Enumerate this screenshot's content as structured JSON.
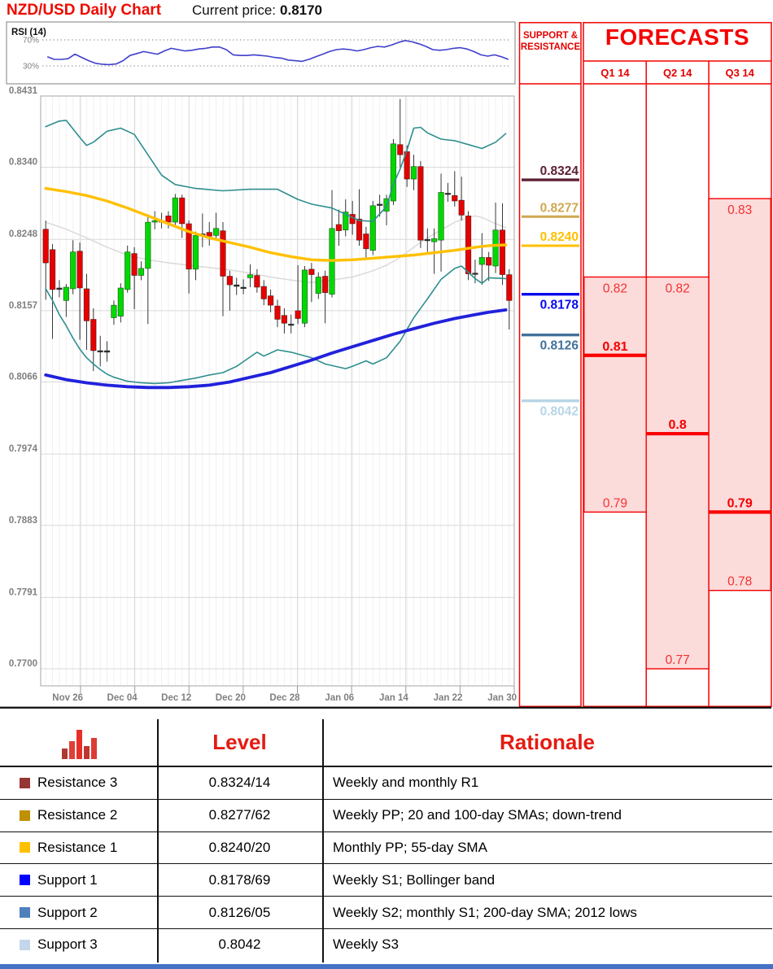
{
  "header": {
    "title": "NZD/USD Daily Chart",
    "price_label": "Current price:",
    "price_value": "0.8170"
  },
  "support_resistance": {
    "header": "SUPPORT & RESISTANCE",
    "levels": [
      {
        "label": "0.8324",
        "price": 0.8324,
        "color": "#5e2234",
        "weight": 3.4,
        "label_side": "above"
      },
      {
        "label": "0.8277",
        "price": 0.8277,
        "color": "#d0a850",
        "weight": 3.0,
        "label_side": "above"
      },
      {
        "label": "0.8240",
        "price": 0.824,
        "color": "#ffc000",
        "weight": 3.0,
        "label_side": "above"
      },
      {
        "label": "0.8178",
        "price": 0.8178,
        "color": "#0b0bee",
        "weight": 3.4,
        "label_side": "below"
      },
      {
        "label": "0.8126",
        "price": 0.8126,
        "color": "#41719c",
        "weight": 3.4,
        "label_side": "below"
      },
      {
        "label": "0.8042",
        "price": 0.8042,
        "color": "#b9d5e7",
        "weight": 3.4,
        "label_side": "below"
      }
    ]
  },
  "forecasts": {
    "title": "FORECASTS",
    "quarters": [
      {
        "label": "Q1 14",
        "range_top": 0.82,
        "range_bottom": 0.79,
        "forecast": 0.81,
        "top_label": "0.82",
        "bottom_label": "0.79",
        "forecast_label": "0.81"
      },
      {
        "label": "Q2 14",
        "range_top": 0.82,
        "range_bottom": 0.77,
        "forecast": 0.8,
        "top_label": "0.82",
        "bottom_label": "0.77",
        "forecast_label": "0.8"
      },
      {
        "label": "Q3 14",
        "range_top": 0.83,
        "range_bottom": 0.78,
        "forecast": 0.79,
        "top_label": "0.83",
        "bottom_label": "0.78",
        "forecast_label": "0.79"
      }
    ]
  },
  "table": {
    "headers": {
      "level": "Level",
      "rationale": "Rationale"
    },
    "rows": [
      {
        "swatch": "#963634",
        "label": "Resistance 3",
        "level": "0.8324/14",
        "rationale": "Weekly and monthly R1"
      },
      {
        "swatch": "#bf9000",
        "label": "Resistance 2",
        "level": "0.8277/62",
        "rationale": "Weekly PP; 20 and 100-day SMAs; down-trend"
      },
      {
        "swatch": "#ffc000",
        "label": "Resistance 1",
        "level": "0.8240/20",
        "rationale": "Monthly PP; 55-day SMA"
      },
      {
        "swatch": "#0000ff",
        "label": "Support 1",
        "level": "0.8178/69",
        "rationale": "Weekly S1; Bollinger band"
      },
      {
        "swatch": "#4f81bd",
        "label": "Support 2",
        "level": "0.8126/05",
        "rationale": "Weekly S2; monthly S1; 200-day SMA; 2012 lows"
      },
      {
        "swatch": "#c3d6ec",
        "label": "Support 3",
        "level": "0.8042",
        "rationale": "Weekly S3"
      }
    ]
  },
  "colors": {
    "candle_up": "#00d800",
    "candle_down": "#e60000",
    "doji": "#333333",
    "bollinger": "#2f8e8e",
    "sma20": "#dadada",
    "sma55": "#ffc000",
    "sma200": "#2121dc",
    "grid": "#d9d9d9",
    "axis_text": "#7f7f7f",
    "rsi_line": "#4040cc",
    "forecast_fill": "#fcdbdb",
    "forecast_border": "#f40000",
    "accent_red": "#e30000"
  },
  "chart_data": {
    "type": "candlestick",
    "title": "NZD/USD Daily Chart",
    "ylim": [
      0.77,
      0.8431
    ],
    "y_tick_labels": [
      "0.8431",
      "0.8340",
      "0.8248",
      "0.8157",
      "0.8066",
      "0.7974",
      "0.7883",
      "0.7791",
      "0.7700"
    ],
    "x_tick_labels": [
      "Nov 26",
      "Dec 04",
      "Dec 12",
      "Dec 20",
      "Dec 28",
      "Jan 06",
      "Jan 14",
      "Jan 22",
      "Jan 30"
    ],
    "rsi": {
      "label": "RSI (14)",
      "overbought": "70%",
      "oversold": "30%",
      "values": [
        44,
        40,
        40,
        41,
        48,
        43,
        38,
        34,
        32.5,
        32,
        33,
        38,
        46,
        49,
        52,
        50,
        48,
        53,
        57,
        55,
        53,
        54,
        56,
        57,
        59,
        59,
        55,
        47,
        46,
        46,
        47,
        46,
        45,
        43,
        42,
        39,
        38,
        37,
        40,
        44,
        48,
        52,
        55,
        56,
        55,
        53,
        55,
        58,
        60,
        59,
        62,
        66,
        69,
        67,
        64,
        60,
        55,
        54,
        55,
        57,
        58,
        56,
        52,
        47,
        45,
        47,
        44,
        40
      ]
    },
    "candles_ohlc": [
      [
        0.8261,
        0.8272,
        0.8171,
        0.8218
      ],
      [
        0.8235,
        0.8242,
        0.8121,
        0.8184
      ],
      [
        0.8186,
        0.8196,
        0.8174,
        0.8184
      ],
      [
        0.817,
        0.8191,
        0.8149,
        0.8187
      ],
      [
        0.8185,
        0.8247,
        0.8178,
        0.8232
      ],
      [
        0.8233,
        0.8244,
        0.812,
        0.8186
      ],
      [
        0.8185,
        0.8204,
        0.8107,
        0.8144
      ],
      [
        0.8146,
        0.816,
        0.808,
        0.8106
      ],
      [
        0.8106,
        0.8125,
        0.8086,
        0.8105
      ],
      [
        0.8104,
        0.8118,
        0.8092,
        0.8106
      ],
      [
        0.8148,
        0.817,
        0.8139,
        0.8164
      ],
      [
        0.815,
        0.8192,
        0.8142,
        0.8186
      ],
      [
        0.8184,
        0.824,
        0.818,
        0.8232
      ],
      [
        0.823,
        0.8238,
        0.8159,
        0.8202
      ],
      [
        0.8202,
        0.822,
        0.8196,
        0.8211
      ],
      [
        0.8211,
        0.828,
        0.814,
        0.827
      ],
      [
        0.827,
        0.8284,
        0.8261,
        0.8272
      ],
      [
        0.8272,
        0.8282,
        0.8262,
        0.827
      ],
      [
        0.8278,
        0.8284,
        0.8262,
        0.827
      ],
      [
        0.827,
        0.8306,
        0.8264,
        0.8301
      ],
      [
        0.8301,
        0.8305,
        0.825,
        0.8268
      ],
      [
        0.8268,
        0.8272,
        0.8179,
        0.821
      ],
      [
        0.821,
        0.8258,
        0.8196,
        0.8253
      ],
      [
        0.8255,
        0.8281,
        0.8238,
        0.8254
      ],
      [
        0.8257,
        0.827,
        0.824,
        0.8252
      ],
      [
        0.8253,
        0.8282,
        0.8247,
        0.8262
      ],
      [
        0.8259,
        0.827,
        0.815,
        0.8201
      ],
      [
        0.8201,
        0.8208,
        0.8157,
        0.819
      ],
      [
        0.819,
        0.8199,
        0.8177,
        0.8188
      ],
      [
        0.8187,
        0.8197,
        0.8178,
        0.8187
      ],
      [
        0.8199,
        0.8216,
        0.8187,
        0.8203
      ],
      [
        0.8202,
        0.821,
        0.818,
        0.8187
      ],
      [
        0.8188,
        0.8196,
        0.8164,
        0.8172
      ],
      [
        0.8176,
        0.8184,
        0.8155,
        0.8164
      ],
      [
        0.8163,
        0.8171,
        0.8136,
        0.8146
      ],
      [
        0.8151,
        0.816,
        0.8128,
        0.8141
      ],
      [
        0.814,
        0.8152,
        0.8128,
        0.8139
      ],
      [
        0.8157,
        0.8215,
        0.814,
        0.8147
      ],
      [
        0.8141,
        0.8214,
        0.8136,
        0.8209
      ],
      [
        0.821,
        0.8218,
        0.8168,
        0.8203
      ],
      [
        0.8179,
        0.8206,
        0.8172,
        0.82
      ],
      [
        0.8201,
        0.8208,
        0.8141,
        0.818
      ],
      [
        0.8178,
        0.8311,
        0.8174,
        0.8262
      ],
      [
        0.8267,
        0.8286,
        0.824,
        0.8259
      ],
      [
        0.826,
        0.8299,
        0.8252,
        0.8283
      ],
      [
        0.828,
        0.8297,
        0.8254,
        0.8268
      ],
      [
        0.8274,
        0.8312,
        0.824,
        0.8247
      ],
      [
        0.8255,
        0.8264,
        0.8222,
        0.8236
      ],
      [
        0.8234,
        0.8297,
        0.8228,
        0.8291
      ],
      [
        0.8292,
        0.8305,
        0.8277,
        0.8293
      ],
      [
        0.8284,
        0.8305,
        0.8266,
        0.83
      ],
      [
        0.8297,
        0.8376,
        0.8292,
        0.837
      ],
      [
        0.8369,
        0.8427,
        0.834,
        0.8356
      ],
      [
        0.836,
        0.8368,
        0.8315,
        0.8325
      ],
      [
        0.8325,
        0.8356,
        0.8311,
        0.8341
      ],
      [
        0.8341,
        0.8348,
        0.8237,
        0.8247
      ],
      [
        0.8247,
        0.8262,
        0.8232,
        0.8248
      ],
      [
        0.8245,
        0.8262,
        0.8204,
        0.8249
      ],
      [
        0.8247,
        0.8332,
        0.8207,
        0.8308
      ],
      [
        0.8306,
        0.832,
        0.8296,
        0.8307
      ],
      [
        0.8304,
        0.8335,
        0.829,
        0.8297
      ],
      [
        0.8298,
        0.8328,
        0.8272,
        0.8279
      ],
      [
        0.8278,
        0.8284,
        0.8196,
        0.8204
      ],
      [
        0.8204,
        0.8222,
        0.8192,
        0.8205
      ],
      [
        0.8216,
        0.8256,
        0.819,
        0.8225
      ],
      [
        0.8225,
        0.8232,
        0.8195,
        0.8215
      ],
      [
        0.8214,
        0.8295,
        0.8205,
        0.826
      ],
      [
        0.826,
        0.8294,
        0.819,
        0.8203
      ],
      [
        0.8203,
        0.821,
        0.8133,
        0.817
      ]
    ],
    "overlays": {
      "bollinger_upper": [
        [
          0,
          0.8392
        ],
        [
          2,
          0.8399
        ],
        [
          3,
          0.84
        ],
        [
          5,
          0.8378
        ],
        [
          6,
          0.8368
        ],
        [
          7,
          0.8372
        ],
        [
          9,
          0.8386
        ],
        [
          11,
          0.839
        ],
        [
          13,
          0.8382
        ],
        [
          15,
          0.8356
        ],
        [
          17,
          0.833
        ],
        [
          19,
          0.8318
        ],
        [
          22,
          0.8313
        ],
        [
          26,
          0.831
        ],
        [
          30,
          0.8312
        ],
        [
          34,
          0.8312
        ],
        [
          37,
          0.8299
        ],
        [
          39,
          0.8293
        ],
        [
          42,
          0.8288
        ],
        [
          44,
          0.828
        ],
        [
          46,
          0.8272
        ],
        [
          48,
          0.8271
        ],
        [
          50,
          0.829
        ],
        [
          51,
          0.8318
        ],
        [
          52,
          0.8338
        ],
        [
          53,
          0.8362
        ],
        [
          54,
          0.839
        ],
        [
          55,
          0.8391
        ],
        [
          56,
          0.8384
        ],
        [
          58,
          0.8376
        ],
        [
          60,
          0.8374
        ],
        [
          62,
          0.8369
        ],
        [
          64,
          0.8364
        ],
        [
          66,
          0.8372
        ],
        [
          67.5,
          0.8383
        ]
      ],
      "bollinger_lower": [
        [
          0,
          0.8185
        ],
        [
          1,
          0.817
        ],
        [
          2,
          0.8152
        ],
        [
          3,
          0.8138
        ],
        [
          4,
          0.8122
        ],
        [
          5,
          0.8108
        ],
        [
          6,
          0.8097
        ],
        [
          7,
          0.8089
        ],
        [
          8,
          0.8082
        ],
        [
          9,
          0.8076
        ],
        [
          10,
          0.8072
        ],
        [
          12,
          0.8067
        ],
        [
          14,
          0.8065
        ],
        [
          16,
          0.8064
        ],
        [
          18,
          0.8065
        ],
        [
          20,
          0.8068
        ],
        [
          22,
          0.8071
        ],
        [
          24,
          0.8075
        ],
        [
          26,
          0.8078
        ],
        [
          28,
          0.8086
        ],
        [
          29,
          0.8092
        ],
        [
          31,
          0.8104
        ],
        [
          32,
          0.8099
        ],
        [
          34,
          0.8107
        ],
        [
          36,
          0.8104
        ],
        [
          39,
          0.8097
        ],
        [
          41,
          0.8089
        ],
        [
          44,
          0.8083
        ],
        [
          45,
          0.8086
        ],
        [
          47,
          0.8093
        ],
        [
          48,
          0.8089
        ],
        [
          50,
          0.8097
        ],
        [
          52,
          0.8118
        ],
        [
          54,
          0.8148
        ],
        [
          56,
          0.8172
        ],
        [
          58,
          0.8197
        ],
        [
          60,
          0.8211
        ],
        [
          61,
          0.8214
        ],
        [
          63,
          0.8198
        ],
        [
          64,
          0.8192
        ],
        [
          65,
          0.8199
        ],
        [
          67.5,
          0.8198
        ]
      ],
      "sma_20": [
        [
          0,
          0.827
        ],
        [
          3,
          0.8261
        ],
        [
          6,
          0.825
        ],
        [
          9,
          0.8238
        ],
        [
          12,
          0.8228
        ],
        [
          15,
          0.8222
        ],
        [
          18,
          0.8218
        ],
        [
          21,
          0.8215
        ],
        [
          24,
          0.8212
        ],
        [
          27,
          0.8209
        ],
        [
          30,
          0.8205
        ],
        [
          33,
          0.82
        ],
        [
          36,
          0.8196
        ],
        [
          39,
          0.8193
        ],
        [
          42,
          0.8196
        ],
        [
          45,
          0.82
        ],
        [
          48,
          0.8208
        ],
        [
          50,
          0.8215
        ],
        [
          52,
          0.8225
        ],
        [
          54,
          0.8238
        ],
        [
          56,
          0.825
        ],
        [
          58,
          0.826
        ],
        [
          60,
          0.827
        ],
        [
          62,
          0.8276
        ],
        [
          63,
          0.8278
        ],
        [
          64,
          0.8276
        ],
        [
          65,
          0.8272
        ],
        [
          66,
          0.8268
        ],
        [
          67.5,
          0.8263
        ]
      ],
      "sma_55": [
        [
          0,
          0.8313
        ],
        [
          3,
          0.8309
        ],
        [
          6,
          0.8304
        ],
        [
          9,
          0.8297
        ],
        [
          12,
          0.8288
        ],
        [
          15,
          0.8278
        ],
        [
          18,
          0.8268
        ],
        [
          21,
          0.8258
        ],
        [
          24,
          0.825
        ],
        [
          27,
          0.8244
        ],
        [
          30,
          0.8238
        ],
        [
          33,
          0.8231
        ],
        [
          36,
          0.8226
        ],
        [
          39,
          0.8222
        ],
        [
          42,
          0.8221
        ],
        [
          45,
          0.8222
        ],
        [
          48,
          0.8224
        ],
        [
          51,
          0.8226
        ],
        [
          54,
          0.8228
        ],
        [
          57,
          0.8231
        ],
        [
          60,
          0.8234
        ],
        [
          63,
          0.8238
        ],
        [
          65,
          0.824
        ],
        [
          67.5,
          0.8241
        ]
      ],
      "sma_200": [
        [
          0,
          0.8075
        ],
        [
          3,
          0.8069
        ],
        [
          6,
          0.8065
        ],
        [
          9,
          0.8062
        ],
        [
          12,
          0.806
        ],
        [
          15,
          0.8059
        ],
        [
          18,
          0.8059
        ],
        [
          21,
          0.806
        ],
        [
          24,
          0.8062
        ],
        [
          27,
          0.8066
        ],
        [
          30,
          0.8072
        ],
        [
          33,
          0.8078
        ],
        [
          36,
          0.8086
        ],
        [
          39,
          0.8094
        ],
        [
          42,
          0.8103
        ],
        [
          45,
          0.8111
        ],
        [
          48,
          0.8119
        ],
        [
          51,
          0.8127
        ],
        [
          54,
          0.8134
        ],
        [
          57,
          0.8141
        ],
        [
          60,
          0.8147
        ],
        [
          63,
          0.8152
        ],
        [
          65,
          0.8155
        ],
        [
          67.5,
          0.8158
        ]
      ]
    }
  }
}
